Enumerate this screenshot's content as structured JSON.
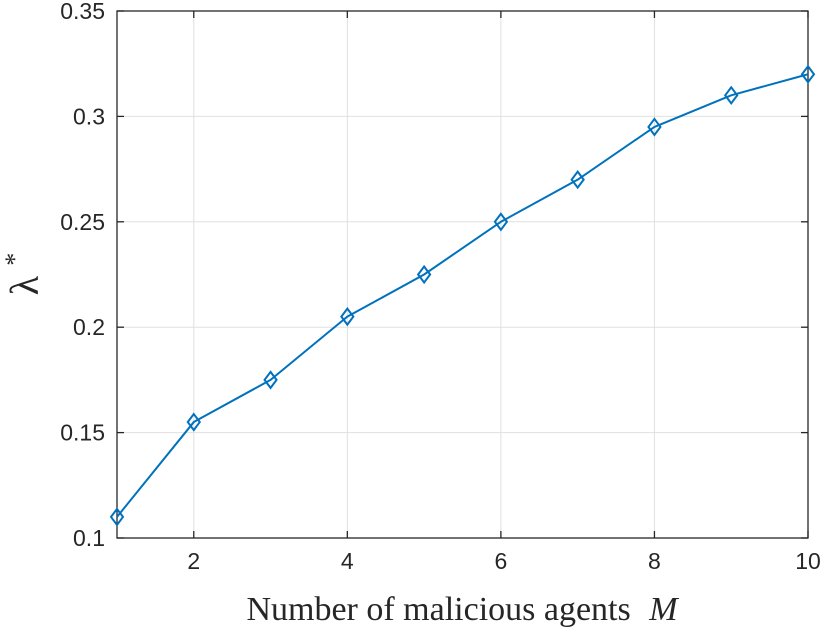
{
  "chart_data": {
    "type": "line",
    "title": "",
    "xlabel": "Number of malicious agents M",
    "xlabel_parts": {
      "text": "Number of malicious agents",
      "variable": "M"
    },
    "ylabel": "λ*",
    "ylabel_parts": {
      "symbol": "λ",
      "superscript": "*"
    },
    "xlim": [
      1,
      10
    ],
    "ylim": [
      0.1,
      0.35
    ],
    "xticks": [
      2,
      4,
      6,
      8,
      10
    ],
    "xtick_labels": [
      "2",
      "4",
      "6",
      "8",
      "10"
    ],
    "yticks": [
      0.1,
      0.15,
      0.2,
      0.25,
      0.3,
      0.35
    ],
    "ytick_labels": [
      "0.1",
      "0.15",
      "0.2",
      "0.25",
      "0.3",
      "0.35"
    ],
    "grid": true,
    "series": [
      {
        "marker": "diamond",
        "color": "#0072BD",
        "x": [
          1,
          2,
          3,
          4,
          5,
          6,
          7,
          8,
          9,
          10
        ],
        "y": [
          0.11,
          0.155,
          0.175,
          0.205,
          0.225,
          0.25,
          0.27,
          0.295,
          0.31,
          0.32
        ]
      }
    ]
  },
  "colors": {
    "line": "#0072BD",
    "axis": "#262626",
    "grid": "#e0e0e0"
  }
}
